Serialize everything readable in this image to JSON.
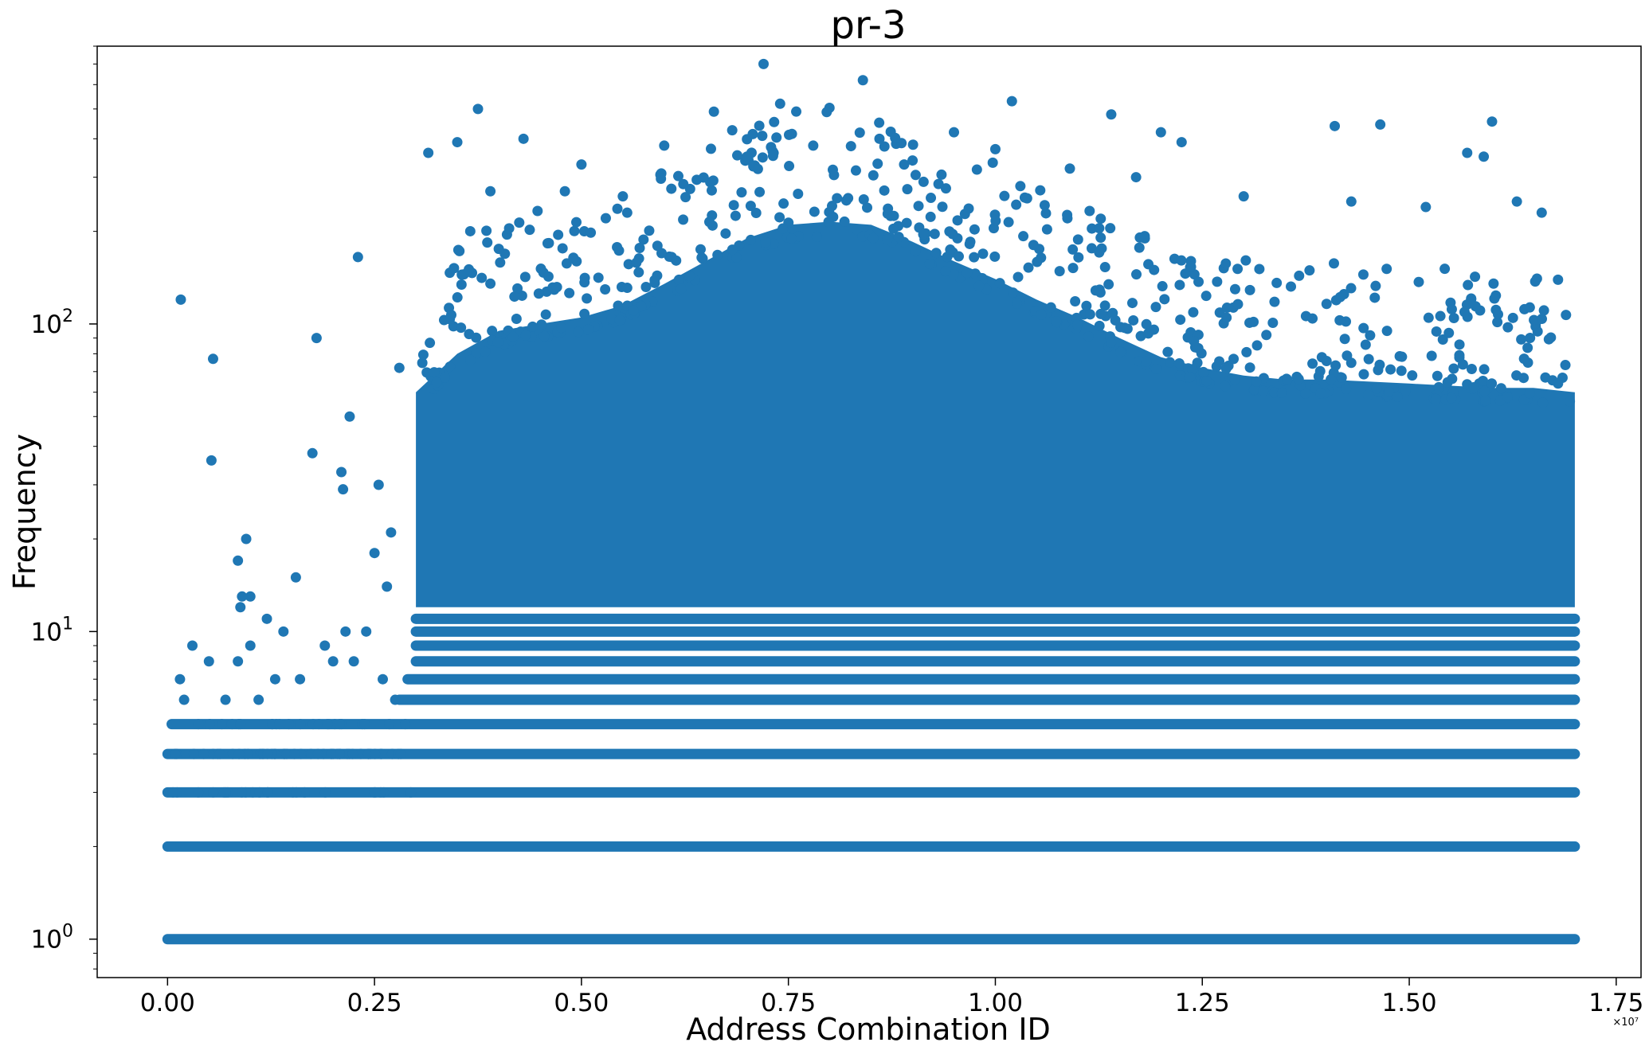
{
  "chart_data": {
    "type": "scatter",
    "title": "pr-3",
    "xlabel": "Address Combination ID",
    "ylabel": "Frequency",
    "x_offset_label": "×10⁷",
    "x_unit_multiplier": 10000000,
    "xlim": [
      -0.085,
      1.78
    ],
    "ylim": [
      0.75,
      800
    ],
    "y_scale": "log",
    "grid": false,
    "legend": "none",
    "marker_color": "#1f77b4",
    "x_ticks": [
      "0.00",
      "0.25",
      "0.50",
      "0.75",
      "1.00",
      "1.25",
      "1.50",
      "1.75"
    ],
    "x_tick_values": [
      0,
      0.25,
      0.5,
      0.75,
      1.0,
      1.25,
      1.5,
      1.75
    ],
    "y_ticks": [
      {
        "base": "10",
        "exp": "0",
        "value": 1
      },
      {
        "base": "10",
        "exp": "1",
        "value": 10
      },
      {
        "base": "10",
        "exp": "2",
        "value": 100
      }
    ],
    "bands": [
      {
        "y": 1,
        "x": [
          0,
          1.7
        ]
      },
      {
        "y": 2,
        "x": [
          0,
          1.7
        ]
      },
      {
        "y": 3,
        "x": [
          0,
          1.7
        ]
      },
      {
        "y": 4,
        "x": [
          0,
          1.7
        ]
      },
      {
        "y": 5,
        "x": [
          0.005,
          1.7
        ]
      },
      {
        "y": 6,
        "x": [
          0.28,
          1.7
        ]
      },
      {
        "y": 7,
        "x": [
          0.29,
          1.7
        ]
      },
      {
        "y": 8,
        "x": [
          0.3,
          1.7
        ]
      },
      {
        "y": 9,
        "x": [
          0.3,
          1.7
        ]
      },
      {
        "y": 10,
        "x": [
          0.3,
          1.7
        ]
      },
      {
        "y": 11,
        "x": [
          0.3,
          1.7
        ]
      }
    ],
    "dense_envelope": [
      [
        0.3,
        12
      ],
      [
        0.3,
        60
      ],
      [
        0.35,
        80
      ],
      [
        0.4,
        95
      ],
      [
        0.45,
        100
      ],
      [
        0.5,
        105
      ],
      [
        0.55,
        115
      ],
      [
        0.6,
        135
      ],
      [
        0.65,
        160
      ],
      [
        0.7,
        190
      ],
      [
        0.75,
        210
      ],
      [
        0.8,
        215
      ],
      [
        0.85,
        210
      ],
      [
        0.9,
        185
      ],
      [
        0.95,
        160
      ],
      [
        1.0,
        140
      ],
      [
        1.05,
        120
      ],
      [
        1.1,
        105
      ],
      [
        1.15,
        90
      ],
      [
        1.2,
        78
      ],
      [
        1.25,
        72
      ],
      [
        1.3,
        68
      ],
      [
        1.35,
        66
      ],
      [
        1.4,
        66
      ],
      [
        1.45,
        65
      ],
      [
        1.5,
        64
      ],
      [
        1.55,
        63
      ],
      [
        1.6,
        62
      ],
      [
        1.65,
        62
      ],
      [
        1.7,
        60
      ],
      [
        1.7,
        12
      ]
    ],
    "outliers": [
      [
        0.016,
        120
      ],
      [
        0.055,
        77
      ],
      [
        0.053,
        36
      ],
      [
        0.18,
        90
      ],
      [
        0.175,
        38
      ],
      [
        0.22,
        50
      ],
      [
        0.21,
        33
      ],
      [
        0.212,
        29
      ],
      [
        0.23,
        165
      ],
      [
        0.255,
        30
      ],
      [
        0.25,
        18
      ],
      [
        0.27,
        21
      ],
      [
        0.265,
        14
      ],
      [
        0.28,
        72
      ],
      [
        0.155,
        15
      ],
      [
        0.095,
        20
      ],
      [
        0.085,
        17
      ],
      [
        0.1,
        13
      ],
      [
        0.09,
        13
      ],
      [
        0.088,
        12
      ],
      [
        0.015,
        7
      ],
      [
        0.02,
        6
      ],
      [
        0.03,
        9
      ],
      [
        0.05,
        8
      ],
      [
        0.07,
        6
      ],
      [
        0.085,
        8
      ],
      [
        0.1,
        9
      ],
      [
        0.11,
        6
      ],
      [
        0.12,
        11
      ],
      [
        0.13,
        7
      ],
      [
        0.14,
        10
      ],
      [
        0.16,
        7
      ],
      [
        0.19,
        9
      ],
      [
        0.2,
        8
      ],
      [
        0.215,
        10
      ],
      [
        0.225,
        8
      ],
      [
        0.24,
        10
      ],
      [
        0.26,
        7
      ],
      [
        0.275,
        6
      ],
      [
        0.72,
        700
      ],
      [
        0.84,
        620
      ],
      [
        1.02,
        530
      ],
      [
        0.74,
        520
      ],
      [
        0.375,
        500
      ],
      [
        0.66,
        490
      ],
      [
        1.14,
        480
      ],
      [
        1.41,
        440
      ],
      [
        1.465,
        445
      ],
      [
        1.6,
        455
      ],
      [
        0.315,
        360
      ],
      [
        0.35,
        390
      ],
      [
        0.43,
        400
      ],
      [
        0.5,
        330
      ],
      [
        0.6,
        380
      ],
      [
        0.7,
        350
      ],
      [
        0.78,
        380
      ],
      [
        0.86,
        400
      ],
      [
        0.95,
        420
      ],
      [
        1.0,
        370
      ],
      [
        1.2,
        420
      ],
      [
        1.225,
        390
      ],
      [
        1.57,
        360
      ],
      [
        1.59,
        350
      ],
      [
        1.17,
        300
      ],
      [
        1.09,
        320
      ],
      [
        0.39,
        270
      ],
      [
        0.48,
        270
      ],
      [
        0.55,
        260
      ],
      [
        0.9,
        340
      ],
      [
        1.3,
        260
      ],
      [
        1.43,
        250
      ],
      [
        1.52,
        240
      ],
      [
        1.63,
        250
      ],
      [
        1.66,
        230
      ]
    ]
  }
}
